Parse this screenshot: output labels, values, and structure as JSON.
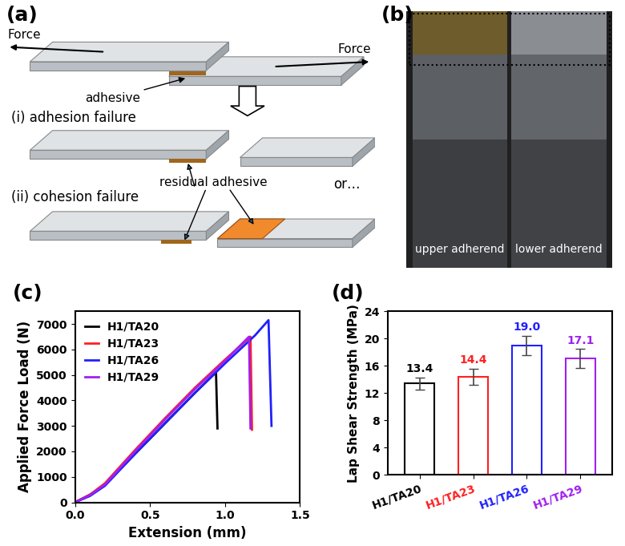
{
  "panel_labels": [
    "(a)",
    "(b)",
    "(c)",
    "(d)"
  ],
  "diagram": {
    "force_left": "Force",
    "force_right": "Force",
    "adhesive": "adhesive",
    "case_1": "(i) adhesion failure",
    "case_2": "(ii) cohesion failure",
    "residual": "residual adhesive",
    "or": "or…"
  },
  "photo": {
    "left": "upper adherend",
    "right": "lower adherend"
  },
  "chart_data": [
    {
      "type": "line",
      "x_label": "Extension (mm)",
      "y_label": "Applied Force Load (N)",
      "xlim": [
        0,
        1.5
      ],
      "xticks": [
        {
          "value": 0,
          "label": "0.0"
        },
        0.5,
        {
          "value": 1,
          "label": "1.0"
        },
        1.5
      ],
      "ylim": [
        0,
        7500
      ],
      "yticks": [
        0,
        1000,
        2000,
        3000,
        4000,
        5000,
        6000,
        7000
      ],
      "legend": "upper left",
      "series": [
        {
          "name": "H1/TA20",
          "color": "#000000",
          "x": [
            0,
            0.1,
            0.2,
            0.4,
            0.6,
            0.8,
            0.94,
            0.95
          ],
          "values": [
            0,
            300,
            700,
            1900,
            3100,
            4300,
            5100,
            2900
          ]
        },
        {
          "name": "H1/TA23",
          "color": "#ff2020",
          "x": [
            0,
            0.1,
            0.2,
            0.4,
            0.6,
            0.8,
            1.0,
            1.17,
            1.18
          ],
          "values": [
            0,
            300,
            750,
            2050,
            3300,
            4500,
            5600,
            6500,
            2850
          ]
        },
        {
          "name": "H1/TA26",
          "color": "#2020ff",
          "x": [
            0,
            0.1,
            0.2,
            0.4,
            0.6,
            0.8,
            1.0,
            1.2,
            1.29,
            1.31
          ],
          "values": [
            0,
            250,
            650,
            1900,
            3100,
            4300,
            5450,
            6550,
            7150,
            3000
          ]
        },
        {
          "name": "H1/TA29",
          "color": "#a020f0",
          "x": [
            0,
            0.1,
            0.2,
            0.4,
            0.6,
            0.8,
            1.0,
            1.16,
            1.17
          ],
          "values": [
            0,
            280,
            700,
            2000,
            3250,
            4450,
            5550,
            6500,
            2900
          ]
        }
      ]
    },
    {
      "type": "bar",
      "y_label": "Lap Shear Strength (MPa)",
      "categories": [
        "H1/TA20",
        "H1/TA23",
        "H1/TA26",
        "H1/TA29"
      ],
      "values": [
        13.4,
        14.4,
        19.0,
        17.1
      ],
      "errors": [
        0.9,
        1.2,
        1.4,
        1.4
      ],
      "colors": [
        "#000000",
        "#ff2020",
        "#2020ff",
        "#a020f0"
      ],
      "ylim": [
        0,
        24
      ],
      "yticks": [
        0,
        4,
        8,
        12,
        16,
        20,
        24
      ],
      "data_labels": true
    }
  ]
}
